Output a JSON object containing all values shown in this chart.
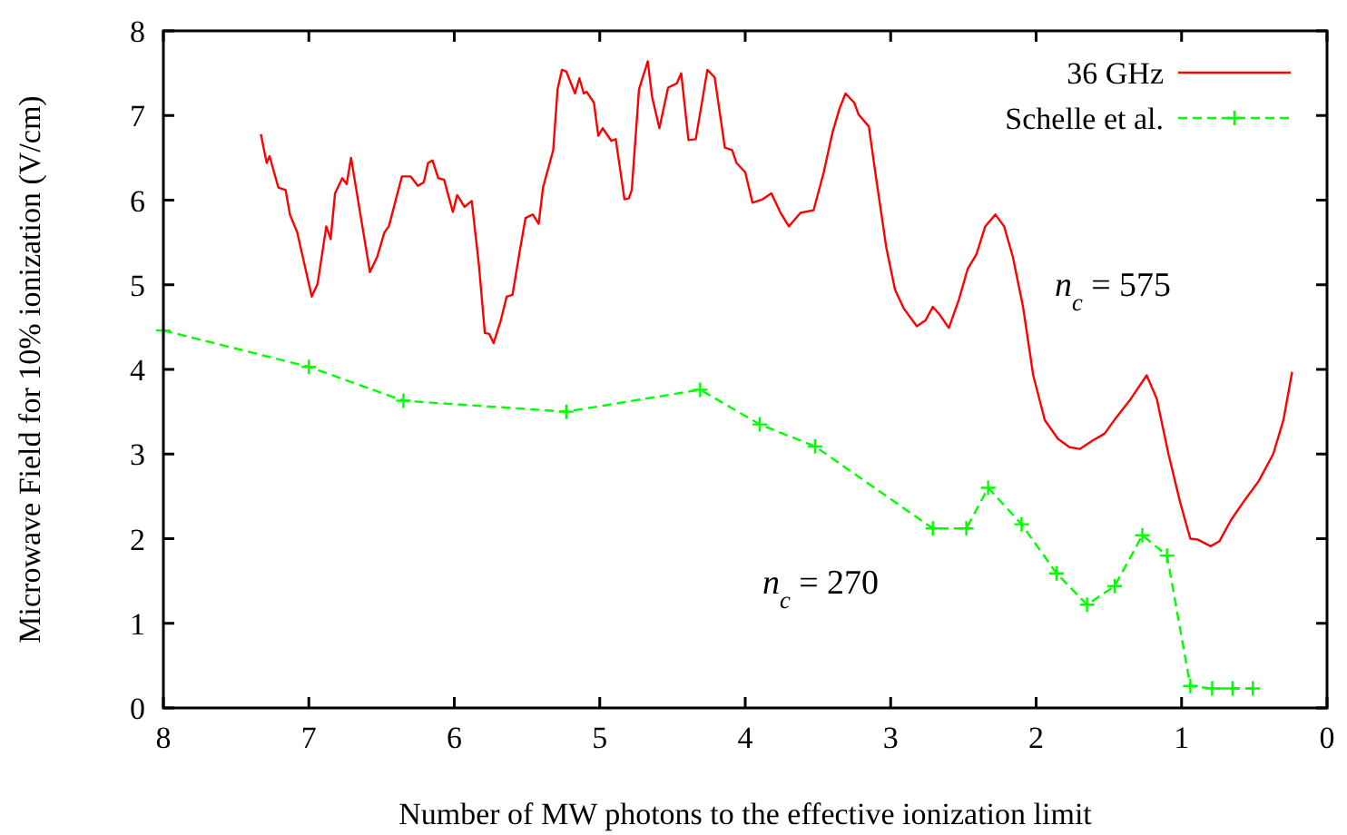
{
  "chart_data": {
    "type": "line",
    "xlabel": "Number of MW photons to the effective ionization limit",
    "ylabel": "Microwave Field for 10% ionization (V/cm)",
    "xlim": [
      8,
      0
    ],
    "xticks": [
      8,
      7,
      6,
      5,
      4,
      3,
      2,
      1,
      0
    ],
    "ylim": [
      0,
      8
    ],
    "yticks": [
      0,
      1,
      2,
      3,
      4,
      5,
      6,
      7,
      8
    ],
    "legend": "top right",
    "series": [
      {
        "name": "36 GHz",
        "color": "#ff0000",
        "marker": "none",
        "line_style": "solid",
        "x": [
          7.33,
          7.29,
          7.27,
          7.21,
          7.16,
          7.13,
          7.08,
          6.98,
          6.94,
          6.88,
          6.85,
          6.82,
          6.77,
          6.74,
          6.71,
          6.58,
          6.53,
          6.48,
          6.45,
          6.36,
          6.3,
          6.25,
          6.21,
          6.18,
          6.15,
          6.11,
          6.07,
          6.01,
          5.98,
          5.93,
          5.88,
          5.83,
          5.79,
          5.76,
          5.73,
          5.68,
          5.64,
          5.6,
          5.55,
          5.51,
          5.46,
          5.42,
          5.39,
          5.32,
          5.29,
          5.26,
          5.23,
          5.17,
          5.14,
          5.11,
          5.09,
          5.04,
          5.01,
          4.98,
          4.92,
          4.89,
          4.83,
          4.8,
          4.78,
          4.73,
          4.67,
          4.64,
          4.59,
          4.53,
          4.47,
          4.44,
          4.39,
          4.34,
          4.26,
          4.21,
          4.14,
          4.09,
          4.06,
          4.0,
          3.95,
          3.88,
          3.82,
          3.76,
          3.7,
          3.62,
          3.53,
          3.46,
          3.4,
          3.35,
          3.31,
          3.25,
          3.22,
          3.15,
          3.1,
          3.03,
          2.97,
          2.91,
          2.82,
          2.76,
          2.71,
          2.66,
          2.6,
          2.53,
          2.47,
          2.41,
          2.35,
          2.28,
          2.22,
          2.16,
          2.09,
          2.02,
          1.94,
          1.85,
          1.77,
          1.7,
          1.61,
          1.53,
          1.45,
          1.35,
          1.24,
          1.17,
          1.09,
          1.01,
          0.94,
          0.89,
          0.8,
          0.74,
          0.66,
          0.56,
          0.47,
          0.37,
          0.3,
          0.24
        ],
        "values": [
          6.78,
          6.44,
          6.52,
          6.15,
          6.12,
          5.83,
          5.62,
          4.86,
          5.01,
          5.69,
          5.54,
          6.08,
          6.26,
          6.19,
          6.5,
          5.15,
          5.33,
          5.62,
          5.69,
          6.28,
          6.28,
          6.17,
          6.21,
          6.44,
          6.47,
          6.26,
          6.24,
          5.86,
          6.06,
          5.92,
          5.99,
          5.22,
          4.43,
          4.42,
          4.31,
          4.58,
          4.86,
          4.88,
          5.4,
          5.79,
          5.83,
          5.72,
          6.15,
          6.59,
          7.31,
          7.54,
          7.52,
          7.26,
          7.44,
          7.26,
          7.28,
          7.15,
          6.76,
          6.85,
          6.7,
          6.72,
          6.01,
          6.02,
          6.12,
          7.31,
          7.64,
          7.22,
          6.85,
          7.33,
          7.38,
          7.5,
          6.71,
          6.72,
          7.54,
          7.45,
          6.62,
          6.59,
          6.44,
          6.33,
          5.97,
          6.01,
          6.08,
          5.86,
          5.69,
          5.85,
          5.88,
          6.33,
          6.8,
          7.09,
          7.26,
          7.15,
          7.01,
          6.87,
          6.26,
          5.44,
          4.94,
          4.72,
          4.51,
          4.58,
          4.74,
          4.64,
          4.49,
          4.83,
          5.19,
          5.36,
          5.69,
          5.83,
          5.69,
          5.33,
          4.74,
          3.93,
          3.4,
          3.18,
          3.08,
          3.06,
          3.16,
          3.24,
          3.43,
          3.65,
          3.93,
          3.65,
          3.0,
          2.43,
          2.0,
          1.99,
          1.91,
          1.97,
          2.22,
          2.47,
          2.68,
          3.0,
          3.4,
          3.97
        ]
      },
      {
        "name": "Schelle et al.",
        "color": "#00ff00",
        "marker": "cross",
        "line_style": "dashed",
        "x": [
          8.0,
          7.0,
          6.35,
          5.23,
          4.31,
          3.9,
          3.52,
          2.71,
          2.48,
          2.33,
          2.1,
          1.86,
          1.65,
          1.46,
          1.27,
          1.1,
          0.94,
          0.79,
          0.65,
          0.51
        ],
        "values": [
          4.46,
          4.03,
          3.63,
          3.5,
          3.76,
          3.35,
          3.09,
          2.12,
          2.12,
          2.6,
          2.17,
          1.59,
          1.22,
          1.44,
          2.04,
          1.8,
          0.26,
          0.23,
          0.23,
          0.23
        ]
      }
    ],
    "annotations": [
      "n$_{c}$ = 575",
      "n$_{c}$ = 270"
    ]
  }
}
